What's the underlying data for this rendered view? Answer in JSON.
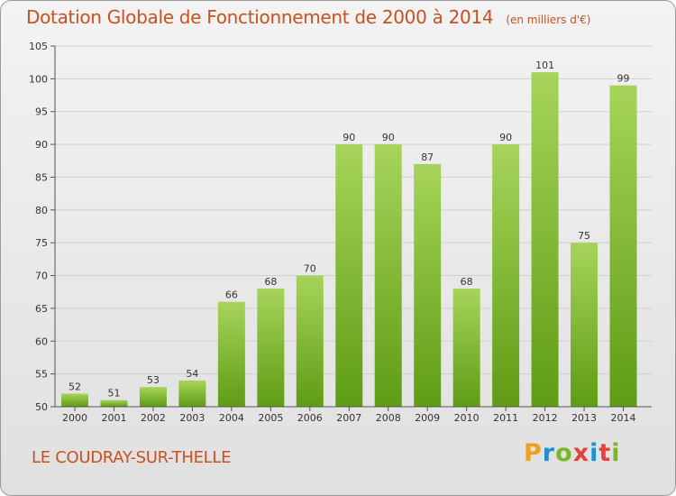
{
  "header": {
    "title": "Dotation Globale de Fonctionnement de 2000 à 2014",
    "unit": "(en milliers d'€)"
  },
  "footer": {
    "commune": "LE COUDRAY-SUR-THELLE",
    "logo": "Proxiti"
  },
  "colors": {
    "bar_top": "#a6d45a",
    "bar_bottom": "#5f9c14",
    "title": "#c8511f",
    "grid": "#cfcfcf",
    "axis": "#555555"
  },
  "chart_data": {
    "type": "bar",
    "title": "Dotation Globale de Fonctionnement de 2000 à 2014",
    "subtitle": "(en milliers d'€)",
    "xlabel": "",
    "ylabel": "",
    "categories": [
      "2000",
      "2001",
      "2002",
      "2003",
      "2004",
      "2005",
      "2006",
      "2007",
      "2008",
      "2009",
      "2010",
      "2011",
      "2012",
      "2013",
      "2014"
    ],
    "values": [
      52,
      51,
      53,
      54,
      66,
      68,
      70,
      90,
      90,
      87,
      68,
      90,
      101,
      75,
      99
    ],
    "ylim": [
      50,
      105
    ],
    "yticks": [
      50,
      55,
      60,
      65,
      70,
      75,
      80,
      85,
      90,
      95,
      100,
      105
    ],
    "grid": true,
    "legend": "none"
  }
}
